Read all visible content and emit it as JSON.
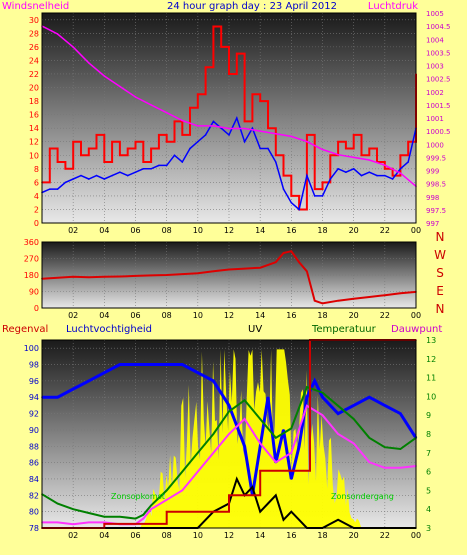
{
  "chart_data": [
    {
      "type": "line",
      "title": "24 hour graph day : 23 April 2012",
      "x_ticks": [
        "02",
        "04",
        "06",
        "08",
        "10",
        "12",
        "14",
        "16",
        "18",
        "20",
        "22",
        "00"
      ],
      "left_axis_label": "Windsnelheid",
      "right_axis_label": "Luchtdruk",
      "left_ylim": [
        0,
        31
      ],
      "left_ticks": [
        0,
        2,
        4,
        6,
        8,
        10,
        12,
        14,
        16,
        18,
        20,
        22,
        24,
        26,
        28,
        30
      ],
      "right_ylim": [
        997,
        1005
      ],
      "right_ticks": [
        "997",
        "997.5",
        "998",
        "998.5",
        "999",
        "999.5",
        "1000",
        "1000.5",
        "1001",
        "1001.5",
        "1002",
        "1002.5",
        "1003",
        "1003.5",
        "1004",
        "1004.5",
        "1005"
      ],
      "grid": true,
      "series": [
        {
          "color": "#ff0000",
          "axis": "left",
          "style": "step",
          "x": [
            0,
            0.5,
            1,
            1.5,
            2,
            2.5,
            3,
            3.5,
            4,
            4.5,
            5,
            5.5,
            6,
            6.5,
            7,
            7.5,
            8,
            8.5,
            9,
            9.5,
            10,
            10.5,
            11,
            11.5,
            12,
            12.5,
            13,
            13.5,
            14,
            14.5,
            15,
            15.5,
            16,
            16.5,
            17,
            17.5,
            18,
            18.5,
            19,
            19.5,
            20,
            20.5,
            21,
            21.5,
            22,
            22.5,
            23,
            23.5,
            24
          ],
          "values": [
            6,
            11,
            9,
            8,
            12,
            10,
            11,
            13,
            9,
            12,
            10,
            11,
            12,
            9,
            11,
            13,
            12,
            15,
            13,
            17,
            19,
            23,
            29,
            26,
            22,
            25,
            15,
            19,
            18,
            14,
            10,
            7,
            4,
            2,
            13,
            5,
            6,
            10,
            12,
            11,
            13,
            10,
            11,
            9,
            8,
            7,
            10,
            12,
            22
          ]
        },
        {
          "color": "#0000ff",
          "axis": "left",
          "style": "line",
          "x": [
            0,
            0.5,
            1,
            1.5,
            2,
            2.5,
            3,
            3.5,
            4,
            4.5,
            5,
            5.5,
            6,
            6.5,
            7,
            7.5,
            8,
            8.5,
            9,
            9.5,
            10,
            10.5,
            11,
            11.5,
            12,
            12.5,
            13,
            13.5,
            14,
            14.5,
            15,
            15.5,
            16,
            16.5,
            17,
            17.5,
            18,
            18.5,
            19,
            19.5,
            20,
            20.5,
            21,
            21.5,
            22,
            22.5,
            23,
            23.5,
            24
          ],
          "values": [
            4.5,
            5,
            5,
            6,
            6.5,
            7,
            6.5,
            7,
            6.5,
            7,
            7.5,
            7,
            7.5,
            8,
            8,
            8.5,
            8.5,
            10,
            9,
            11,
            12,
            13,
            15,
            14,
            13,
            15.5,
            12,
            14,
            11,
            11,
            9,
            5,
            3,
            2,
            7,
            4,
            4,
            6.5,
            8,
            7.5,
            8,
            7,
            7.5,
            7,
            7,
            6.5,
            8,
            9,
            14
          ]
        },
        {
          "color": "#ff00ff",
          "axis": "right",
          "style": "line",
          "x": [
            0,
            1,
            2,
            3,
            4,
            5,
            6,
            7,
            8,
            9,
            10,
            11,
            12,
            13,
            14,
            15,
            16,
            17,
            18,
            19,
            20,
            21,
            22,
            23,
            24
          ],
          "values": [
            1004.5,
            1004.2,
            1003.7,
            1003.1,
            1002.6,
            1002.2,
            1001.8,
            1001.5,
            1001.2,
            1000.9,
            1000.7,
            1000.7,
            1000.6,
            1000.6,
            1000.5,
            1000.4,
            1000.3,
            1000.1,
            999.8,
            999.6,
            999.5,
            999.4,
            999.2,
            998.9,
            998.4
          ]
        }
      ]
    },
    {
      "type": "line",
      "title": "",
      "x_ticks": [
        "02",
        "04",
        "06",
        "08",
        "10",
        "12",
        "14",
        "16",
        "18",
        "20",
        "22",
        "00"
      ],
      "left_ticks": [
        0,
        90,
        180,
        270,
        360
      ],
      "ylim": [
        0,
        360
      ],
      "right_labels": [
        "N",
        "W",
        "S",
        "E",
        "N"
      ],
      "grid": true,
      "series": [
        {
          "color": "#dd0000",
          "x": [
            0,
            1,
            2,
            3,
            4,
            5,
            6,
            7,
            8,
            9,
            10,
            11,
            12,
            13,
            14,
            15,
            15.5,
            16,
            16.5,
            17,
            17.5,
            18,
            19,
            20,
            21,
            22,
            23,
            24
          ],
          "values": [
            160,
            165,
            170,
            168,
            170,
            172,
            175,
            178,
            180,
            185,
            190,
            200,
            210,
            215,
            220,
            250,
            300,
            310,
            250,
            200,
            40,
            25,
            40,
            50,
            60,
            70,
            80,
            88
          ]
        }
      ]
    },
    {
      "type": "line",
      "title": "",
      "header_labels": [
        "Regenval",
        "Luchtvochtigheid",
        "UV",
        "Temperatuur",
        "Dauwpunt"
      ],
      "x_ticks": [
        "02",
        "04",
        "06",
        "08",
        "10",
        "12",
        "14",
        "16",
        "18",
        "20",
        "22",
        "00"
      ],
      "left_ylim": [
        78,
        101
      ],
      "left_ticks": [
        78,
        80,
        82,
        84,
        86,
        88,
        90,
        92,
        94,
        96,
        98,
        100
      ],
      "right_ylim": [
        3,
        13
      ],
      "right_ticks": [
        3,
        4,
        5,
        6,
        7,
        8,
        9,
        10,
        11,
        12,
        13
      ],
      "annotations": [
        "Zonsopkomst",
        "Zonsondergang"
      ],
      "grid": true,
      "series": [
        {
          "color": "#0000ff",
          "axis": "left",
          "x": [
            0,
            1,
            2,
            3,
            4,
            5,
            6,
            7,
            8,
            9,
            10,
            11,
            12,
            13,
            13.5,
            14,
            14.5,
            15,
            15.5,
            16,
            16.5,
            17,
            17.5,
            18,
            19,
            20,
            21,
            22,
            23,
            24
          ],
          "values": [
            94,
            94,
            95,
            96,
            97,
            98,
            98,
            98,
            98,
            98,
            97,
            96,
            93,
            88,
            82,
            88,
            94,
            86,
            90,
            84,
            88,
            94,
            96,
            94,
            92,
            93,
            94,
            93,
            92,
            89
          ]
        },
        {
          "color": "#ff33ff",
          "axis": "right",
          "x": [
            0,
            1,
            2,
            3,
            4,
            5,
            6,
            6.5,
            7,
            8,
            9,
            10,
            11,
            12,
            13,
            14,
            15,
            16,
            17,
            18,
            19,
            20,
            21,
            22,
            23,
            24
          ],
          "values": [
            3.3,
            3.3,
            3.2,
            3.3,
            3.3,
            3.2,
            3.2,
            3.5,
            4.0,
            4.5,
            5.0,
            6.0,
            7.0,
            8.0,
            8.8,
            7.5,
            6.5,
            7.0,
            9.5,
            9.0,
            8.0,
            7.5,
            6.5,
            6.2,
            6.2,
            6.3
          ]
        },
        {
          "color": "#008000",
          "axis": "right",
          "x": [
            0,
            1,
            2,
            3,
            4,
            5,
            6,
            6.5,
            7,
            8,
            9,
            10,
            11,
            12,
            13,
            14,
            15,
            16,
            17,
            18,
            19,
            20,
            21,
            22,
            23,
            24
          ],
          "values": [
            4.8,
            4.3,
            4.0,
            3.8,
            3.6,
            3.6,
            3.5,
            3.7,
            4.2,
            5.0,
            6.0,
            7.0,
            8.0,
            9.2,
            9.8,
            8.8,
            7.8,
            8.3,
            10.5,
            10.2,
            9.5,
            8.8,
            7.8,
            7.3,
            7.2,
            7.8
          ]
        },
        {
          "color": "#000000",
          "axis": "left",
          "x": [
            0,
            6,
            7,
            8,
            9,
            10,
            10.5,
            11,
            12,
            12.5,
            13,
            13.5,
            14,
            14.5,
            15,
            15.5,
            16,
            16.5,
            17,
            18,
            19,
            20,
            21,
            22,
            23,
            24
          ],
          "values": [
            78,
            78,
            78,
            78,
            78,
            78,
            79,
            80,
            81,
            84,
            82,
            83,
            80,
            81,
            82,
            79,
            80,
            79,
            78,
            78,
            79,
            78,
            78,
            78,
            78,
            78
          ]
        },
        {
          "color": "#cc0000",
          "axis": "left",
          "style": "step",
          "x": [
            0,
            2,
            4,
            6,
            8,
            10,
            12,
            14,
            16,
            17,
            17.2,
            24
          ],
          "values": [
            78,
            78,
            78.5,
            78.5,
            80,
            80,
            82,
            85,
            85,
            85,
            101,
            101
          ]
        }
      ]
    }
  ]
}
